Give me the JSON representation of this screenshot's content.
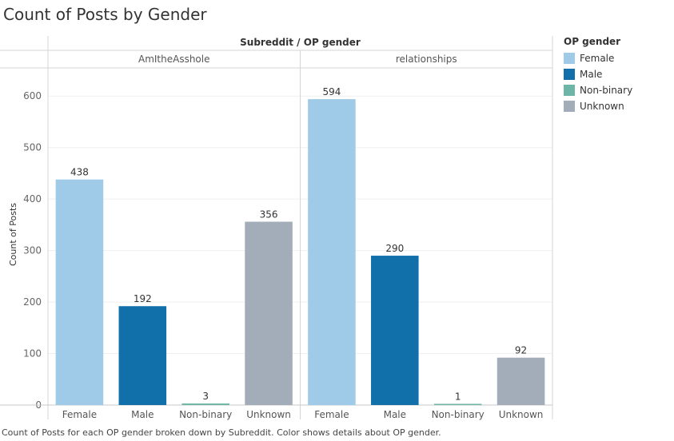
{
  "title": "Count of Posts by Gender",
  "caption": "Count of Posts for each OP gender broken down by Subreddit.  Color shows details about OP gender.",
  "legend": {
    "title": "OP gender",
    "items": [
      {
        "label": "Female",
        "color": "#a0cbe8"
      },
      {
        "label": "Male",
        "color": "#1170aa"
      },
      {
        "label": "Non-binary",
        "color": "#6db5a6"
      },
      {
        "label": "Unknown",
        "color": "#a3acb9"
      }
    ]
  },
  "chart_data": {
    "type": "bar",
    "header": "Subreddit  /  OP gender",
    "ylabel": "Count of Posts",
    "ylim": [
      0,
      650
    ],
    "yticks": [
      0,
      100,
      200,
      300,
      400,
      500,
      600
    ],
    "categories": [
      "Female",
      "Male",
      "Non-binary",
      "Unknown"
    ],
    "panels": [
      {
        "name": "AmItheAsshole",
        "values": [
          438,
          192,
          3,
          356
        ]
      },
      {
        "name": "relationships",
        "values": [
          594,
          290,
          1,
          92
        ]
      }
    ],
    "grid": true
  }
}
